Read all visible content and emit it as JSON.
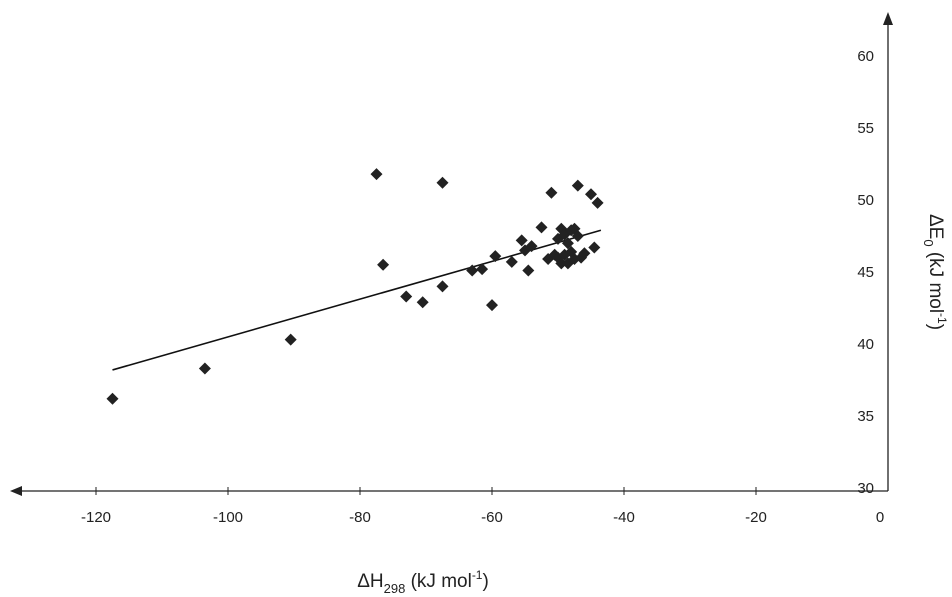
{
  "chart_data": {
    "type": "scatter",
    "xlabel": "ΔH298 (kJ mol-1)",
    "xlabel_parts": {
      "main": "ΔH",
      "sub": "298",
      "unit_open": " (kJ mol",
      "sup": "-1",
      "unit_close": ")"
    },
    "ylabel": "ΔE0 (kJ mol-1)",
    "ylabel_parts": {
      "main": "ΔE",
      "sub": "0",
      "unit_open": " (kJ mol",
      "sup": "-1",
      "unit_close": ")"
    },
    "xlim": [
      -130,
      0
    ],
    "ylim": [
      30,
      62
    ],
    "x_ticks": [
      -120,
      -100,
      -80,
      -60,
      -40,
      -20,
      0
    ],
    "x_tick_labels": [
      "-120",
      "-100",
      "-80",
      "-60",
      "-40",
      "-20",
      "0"
    ],
    "y_ticks": [
      30,
      35,
      40,
      45,
      50,
      55,
      60
    ],
    "y_tick_labels": [
      "30",
      "35",
      "40",
      "45",
      "50",
      "55",
      "60"
    ],
    "grid": false,
    "points": [
      [
        -117.5,
        36.2
      ],
      [
        -103.5,
        38.3
      ],
      [
        -90.5,
        40.3
      ],
      [
        -77.5,
        51.8
      ],
      [
        -76.5,
        45.5
      ],
      [
        -73,
        43.3
      ],
      [
        -70.5,
        42.9
      ],
      [
        -67.5,
        51.2
      ],
      [
        -67.5,
        44.0
      ],
      [
        -63,
        45.1
      ],
      [
        -61.5,
        45.2
      ],
      [
        -60,
        42.7
      ],
      [
        -59.5,
        46.1
      ],
      [
        -57,
        45.7
      ],
      [
        -55.5,
        47.2
      ],
      [
        -55,
        46.5
      ],
      [
        -54.5,
        45.1
      ],
      [
        -54,
        46.8
      ],
      [
        -52.5,
        48.1
      ],
      [
        -51.5,
        45.9
      ],
      [
        -51,
        50.5
      ],
      [
        -50.5,
        46.2
      ],
      [
        -50,
        47.3
      ],
      [
        -50,
        46.0
      ],
      [
        -49.5,
        48.0
      ],
      [
        -49.5,
        45.6
      ],
      [
        -49,
        47.6
      ],
      [
        -49,
        46.2
      ],
      [
        -48.5,
        47.0
      ],
      [
        -48.5,
        45.6
      ],
      [
        -48,
        47.9
      ],
      [
        -48,
        46.4
      ],
      [
        -47.5,
        45.9
      ],
      [
        -47.5,
        48.0
      ],
      [
        -47,
        51.0
      ],
      [
        -47,
        47.5
      ],
      [
        -46.5,
        46.0
      ],
      [
        -46,
        46.3
      ],
      [
        -45,
        50.4
      ],
      [
        -44.5,
        46.7
      ],
      [
        -44,
        49.8
      ]
    ],
    "trendline": {
      "x": [
        -117.5,
        -43.5
      ],
      "y": [
        38.2,
        47.9
      ]
    },
    "marker": "diamond",
    "marker_color": "#222222",
    "line_color": "#111111"
  }
}
